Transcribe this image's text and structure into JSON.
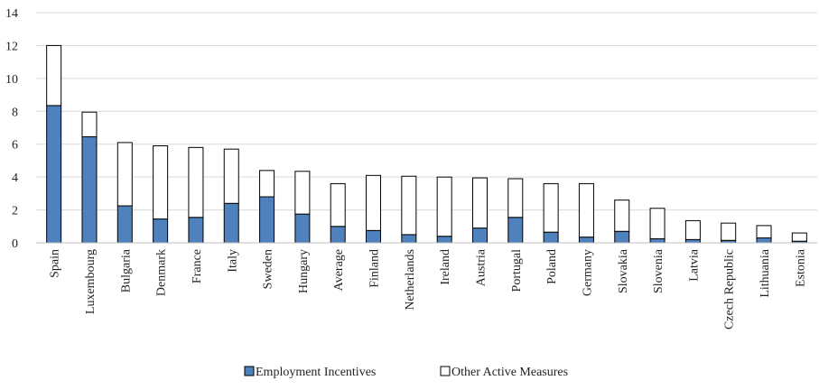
{
  "chart_data": {
    "type": "bar",
    "stacked": true,
    "categories": [
      "Spain",
      "Luxembourg",
      "Bulgaria",
      "Denmark",
      "France",
      "Italy",
      "Sweden",
      "Hungary",
      "Average",
      "Finland",
      "Netherlands",
      "Ireland",
      "Austria",
      "Portugal",
      "Poland",
      "Germany",
      "Slovakia",
      "Slovenia",
      "Latvia",
      "Czech Republic",
      "Lithuania",
      "Estonia"
    ],
    "series": [
      {
        "name": "Employment Incentives",
        "color": "#4f81bd",
        "values": [
          8.35,
          6.45,
          2.25,
          1.45,
          1.55,
          2.4,
          2.8,
          1.75,
          1.0,
          0.75,
          0.5,
          0.4,
          0.9,
          1.55,
          0.65,
          0.35,
          0.7,
          0.25,
          0.2,
          0.15,
          0.3,
          0.1
        ]
      },
      {
        "name": "Other Active Measures",
        "color": "#ffffff",
        "values": [
          3.65,
          1.5,
          3.85,
          4.45,
          4.25,
          3.3,
          1.6,
          2.6,
          2.6,
          3.35,
          3.55,
          3.6,
          3.05,
          2.35,
          2.95,
          3.25,
          1.9,
          1.85,
          1.15,
          1.05,
          0.75,
          0.5
        ]
      }
    ],
    "yticks": [
      "0",
      "2",
      "4",
      "6",
      "8",
      "10",
      "12",
      "14"
    ],
    "ylim": [
      0,
      14
    ],
    "grid": true,
    "legend_position": "bottom-center"
  }
}
